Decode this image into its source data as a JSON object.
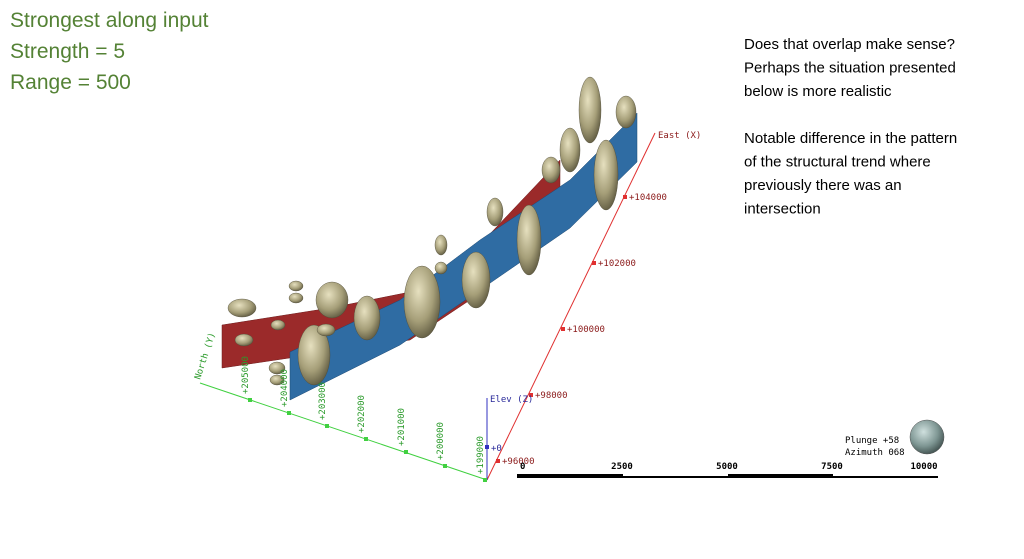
{
  "header": {
    "lines": [
      "Strongest along input",
      "Strength = 5",
      "Range = 500"
    ]
  },
  "notes": {
    "paragraphs": [
      [
        "Does that overlap make sense?",
        "Perhaps the situation presented",
        "below is more realistic"
      ],
      [
        "Notable difference in the pattern",
        "of the structural trend where",
        "previously there was an",
        "intersection"
      ]
    ]
  },
  "axes": {
    "east": {
      "label": "East (X)",
      "ticks": [
        "+96000",
        "+98000",
        "+100000",
        "+102000",
        "+104000"
      ]
    },
    "north": {
      "label": "North (Y)",
      "ticks": [
        "+199000",
        "+200000",
        "+201000",
        "+202000",
        "+203000",
        "+204000",
        "+205000"
      ]
    },
    "elev": {
      "label": "Elev (Z)",
      "ticks": [
        "+0"
      ]
    }
  },
  "scale_bar": {
    "labels": [
      "0",
      "2500",
      "5000",
      "7500",
      "10000"
    ]
  },
  "orientation": {
    "plunge": "Plunge +58",
    "azimuth": "Azimuth 068"
  }
}
